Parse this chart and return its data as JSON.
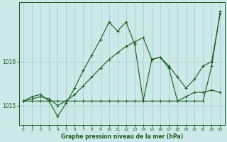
{
  "background_color": "#cce8e8",
  "grid_color": "#99cccc",
  "line_color": "#1a5c1a",
  "xlabel": "Graphe pression niveau de la mer (hPa)",
  "xlim": [
    -0.5,
    23.5
  ],
  "ylim": [
    1014.55,
    1017.35
  ],
  "yticks": [
    1015,
    1016
  ],
  "xticks": [
    0,
    1,
    2,
    3,
    4,
    5,
    6,
    7,
    8,
    9,
    10,
    11,
    12,
    13,
    14,
    15,
    16,
    17,
    18,
    19,
    20,
    21,
    22,
    23
  ],
  "s1_x": [
    0,
    1,
    2,
    3,
    4,
    5,
    6,
    7,
    8,
    9,
    10,
    11,
    12,
    13,
    14,
    15,
    16,
    17,
    18,
    19,
    20,
    21,
    22,
    23
  ],
  "s1_y": [
    1015.1,
    1015.2,
    1015.25,
    1015.1,
    1014.75,
    1015.05,
    1015.4,
    1015.8,
    1016.15,
    1016.5,
    1016.9,
    1016.7,
    1016.9,
    1016.4,
    1015.1,
    1015.1,
    1015.1,
    1015.1,
    1015.1,
    1015.2,
    1015.3,
    1015.3,
    1015.35,
    1015.3
  ],
  "s2_x": [
    0,
    1,
    2,
    3,
    4,
    5,
    6,
    7,
    8,
    9,
    10,
    11,
    12,
    13,
    14,
    15,
    16,
    17,
    18,
    19,
    20,
    21,
    22,
    23
  ],
  "s2_y": [
    1015.1,
    1015.15,
    1015.2,
    1015.15,
    1015.0,
    1015.1,
    1015.25,
    1015.45,
    1015.65,
    1015.85,
    1016.05,
    1016.2,
    1016.35,
    1016.45,
    1016.55,
    1016.05,
    1016.1,
    1015.9,
    1015.65,
    1015.4,
    1015.6,
    1015.9,
    1016.0,
    1017.1
  ],
  "s3_x": [
    0,
    1,
    2,
    3,
    4,
    5,
    6,
    7,
    8,
    9,
    10,
    11,
    12,
    13,
    14,
    15,
    16,
    17,
    18,
    19,
    20,
    21,
    22,
    23
  ],
  "s3_y": [
    1015.1,
    1015.1,
    1015.1,
    1015.1,
    1015.1,
    1015.1,
    1015.1,
    1015.1,
    1015.1,
    1015.1,
    1015.1,
    1015.1,
    1015.1,
    1015.1,
    1015.1,
    1016.05,
    1016.1,
    1015.85,
    1015.1,
    1015.1,
    1015.1,
    1015.1,
    1015.9,
    1017.15
  ]
}
